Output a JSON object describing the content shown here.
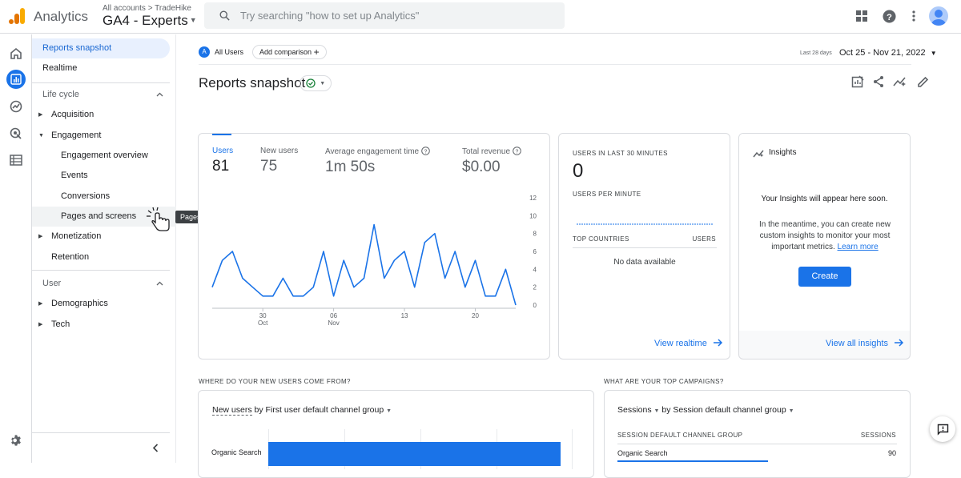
{
  "header": {
    "app_name": "Analytics",
    "account_breadcrumb": "All accounts > TradeHike",
    "property_name": "GA4 - Experts",
    "search_placeholder": "Try searching \"how to set up Analytics\""
  },
  "nav": {
    "items": [
      {
        "label": "Reports snapshot"
      },
      {
        "label": "Realtime"
      },
      {
        "label": "Life cycle"
      },
      {
        "label": "Acquisition"
      },
      {
        "label": "Engagement"
      },
      {
        "label": "Engagement overview"
      },
      {
        "label": "Events"
      },
      {
        "label": "Conversions"
      },
      {
        "label": "Pages and screens"
      },
      {
        "label": "Monetization"
      },
      {
        "label": "Retention"
      },
      {
        "label": "User"
      },
      {
        "label": "Demographics"
      },
      {
        "label": "Tech"
      }
    ],
    "tooltip": "Pages and screens"
  },
  "comparison": {
    "segment_badge": "A",
    "segment": "All Users",
    "add_label": "Add comparison"
  },
  "date_range": {
    "label": "Last 28 days",
    "value": "Oct 25 - Nov 21, 2022"
  },
  "page": {
    "title": "Reports snapshot"
  },
  "metrics": [
    {
      "label": "Users",
      "value": "81"
    },
    {
      "label": "New users",
      "value": "75"
    },
    {
      "label": "Average engagement time",
      "value": "1m 50s"
    },
    {
      "label": "Total revenue",
      "value": "$0.00"
    }
  ],
  "chart_data": {
    "type": "line",
    "ylim": [
      0,
      12
    ],
    "y_ticks": [
      "12",
      "10",
      "8",
      "6",
      "4",
      "2",
      "0"
    ],
    "x_ticks": [
      {
        "day": "30",
        "month": "Oct"
      },
      {
        "day": "06",
        "month": "Nov"
      },
      {
        "day": "13",
        "month": ""
      },
      {
        "day": "20",
        "month": ""
      }
    ],
    "series": [
      {
        "values": [
          2,
          5,
          6,
          3,
          2,
          1,
          1,
          3,
          1,
          1,
          2,
          6,
          1,
          5,
          2,
          3,
          9,
          3,
          5,
          6,
          2,
          7,
          8,
          3,
          6,
          2,
          5,
          1,
          1,
          4,
          0
        ],
        "color": "#1a73e8"
      }
    ]
  },
  "realtime": {
    "users_caption": "USERS IN LAST 30 MINUTES",
    "users_value": "0",
    "per_minute_caption": "USERS PER MINUTE",
    "countries_caption": "TOP COUNTRIES",
    "users_col": "USERS",
    "no_data": "No data available",
    "link": "View realtime"
  },
  "insights": {
    "title": "Insights",
    "soon": "Your Insights will appear here soon.",
    "desc": "In the meantime, you can create new custom insights to monitor your most important metrics.",
    "learn_more": "Learn more",
    "create": "Create",
    "link": "View all insights"
  },
  "new_users_section": {
    "heading": "WHERE DO YOUR NEW USERS COME FROM?",
    "metric": "New users",
    "by_text": "by First user default channel group",
    "row_label": "Organic Search"
  },
  "campaigns_section": {
    "heading": "WHAT ARE YOUR TOP CAMPAIGNS?",
    "metric": "Sessions",
    "by_text": "by Session default channel group",
    "col_dim": "SESSION DEFAULT CHANNEL GROUP",
    "col_metric": "SESSIONS",
    "row_label": "Organic Search",
    "row_value": "90"
  },
  "colors": {
    "accent": "#1a73e8",
    "text": "#202124",
    "muted": "#5f6368",
    "border": "#dadce0"
  }
}
